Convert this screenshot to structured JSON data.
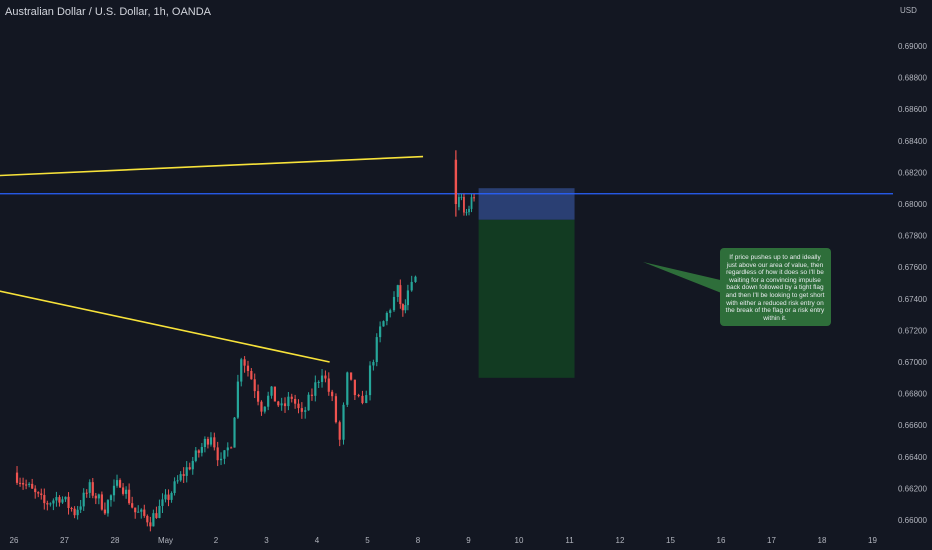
{
  "header": {
    "title": "Australian Dollar / U.S. Dollar, 1h, OANDA",
    "currency": "USD"
  },
  "colors": {
    "background": "#131722",
    "up_candle": "#26a69a",
    "down_candle": "#ef5350",
    "trendline": "#f7e23a",
    "horizontal_line": "#2962ff",
    "risk_zone": "#2a3f73",
    "reward_zone": "#123b22",
    "note_box": "#2e6e3a"
  },
  "note": {
    "text": "If price pushes up to and ideally just above our area of value, then regardless of how it does so I'll be waiting for a convincing impulse back down followed by a tight flag and then I'll be looking to get short with either a reduced risk entry on the break of the flag or a risk entry within it."
  },
  "chart_data": {
    "type": "candlestick",
    "title": "Australian Dollar / U.S. Dollar, 1h, OANDA",
    "ylabel": "USD",
    "ylim": [
      0.6597,
      0.6915
    ],
    "y_ticks": [
      "0.69000",
      "0.68800",
      "0.68600",
      "0.68400",
      "0.68200",
      "0.68000",
      "0.67800",
      "0.67600",
      "0.67400",
      "0.67200",
      "0.67000",
      "0.66800",
      "0.66600",
      "0.66400",
      "0.66200",
      "0.66000"
    ],
    "x_ticks": [
      "26",
      "27",
      "28",
      "May",
      "2",
      "3",
      "4",
      "5",
      "8",
      "9",
      "10",
      "11",
      "12",
      "15",
      "16",
      "17",
      "18",
      "19"
    ],
    "price_path": [
      {
        "t": 0,
        "p": 0.663
      },
      {
        "t": 0.3,
        "p": 0.662
      },
      {
        "t": 0.6,
        "p": 0.661
      },
      {
        "t": 0.9,
        "p": 0.6615
      },
      {
        "t": 1.2,
        "p": 0.6605
      },
      {
        "t": 1.5,
        "p": 0.662
      },
      {
        "t": 1.8,
        "p": 0.6608
      },
      {
        "t": 2.1,
        "p": 0.6625
      },
      {
        "t": 2.4,
        "p": 0.6605
      },
      {
        "t": 2.7,
        "p": 0.66
      },
      {
        "t": 3.0,
        "p": 0.6612
      },
      {
        "t": 3.3,
        "p": 0.6627
      },
      {
        "t": 3.6,
        "p": 0.664
      },
      {
        "t": 3.9,
        "p": 0.6655
      },
      {
        "t": 4.1,
        "p": 0.6635
      },
      {
        "t": 4.3,
        "p": 0.665
      },
      {
        "t": 4.5,
        "p": 0.6705
      },
      {
        "t": 4.7,
        "p": 0.669
      },
      {
        "t": 4.9,
        "p": 0.6672
      },
      {
        "t": 5.1,
        "p": 0.668
      },
      {
        "t": 5.3,
        "p": 0.667
      },
      {
        "t": 5.5,
        "p": 0.6678
      },
      {
        "t": 5.7,
        "p": 0.6665
      },
      {
        "t": 5.9,
        "p": 0.668
      },
      {
        "t": 6.1,
        "p": 0.6695
      },
      {
        "t": 6.3,
        "p": 0.6675
      },
      {
        "t": 6.45,
        "p": 0.665
      },
      {
        "t": 6.6,
        "p": 0.669
      },
      {
        "t": 6.75,
        "p": 0.668
      },
      {
        "t": 6.9,
        "p": 0.667
      },
      {
        "t": 7.05,
        "p": 0.6695
      },
      {
        "t": 7.25,
        "p": 0.672
      },
      {
        "t": 7.45,
        "p": 0.6735
      },
      {
        "t": 7.6,
        "p": 0.6745
      },
      {
        "t": 7.7,
        "p": 0.673
      },
      {
        "t": 7.8,
        "p": 0.6742
      },
      {
        "t": 7.95,
        "p": 0.6752
      }
    ],
    "later_candles": {
      "t_start": 8.75,
      "t_end": 9.15,
      "spike_high": 0.6834,
      "range_low": 0.6792,
      "range_high": 0.6806
    },
    "horizontal_line": 0.68065,
    "trendlines": [
      {
        "from": {
          "t": -0.3,
          "p": 0.6818
        },
        "to": {
          "t": 8.1,
          "p": 0.683
        }
      },
      {
        "from": {
          "t": -0.3,
          "p": 0.6745
        },
        "to": {
          "t": 6.25,
          "p": 0.67
        }
      }
    ],
    "position": {
      "t_start": 9.2,
      "t_end": 11.1,
      "stop": 0.681,
      "entry": 0.679,
      "target": 0.669
    },
    "grid": false,
    "legend": "none"
  }
}
